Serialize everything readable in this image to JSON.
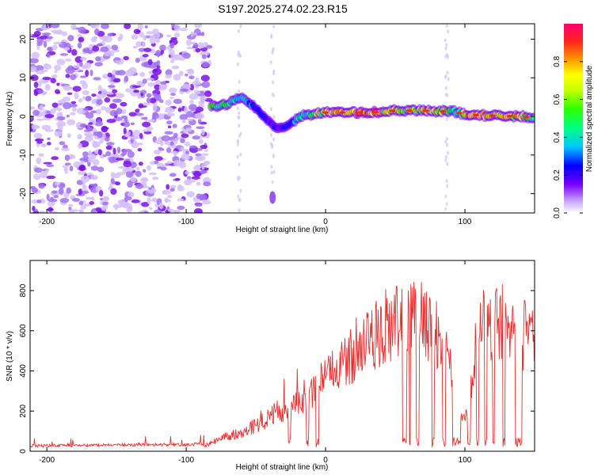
{
  "title": "S197.2025.274.02.23.R15",
  "colors": {
    "snr_line": "#e53030",
    "ridge_low": "#7a00ff",
    "noise": "#8a3cf0"
  },
  "chart_data": [
    {
      "type": "heatmap",
      "name": "spectrogram",
      "xlabel": "Height of straight line (km)",
      "ylabel": "Frequency (Hz)",
      "xlim": [
        -212,
        150
      ],
      "ylim": [
        -25,
        24
      ],
      "xticks": [
        -200,
        -100,
        0,
        100
      ],
      "yticks": [
        -20,
        -10,
        0,
        10,
        20
      ],
      "colorbar": {
        "label": "Normalized spectral amplitude",
        "range": [
          0,
          1
        ],
        "ticks": [
          0.0,
          0.2,
          0.4,
          0.6,
          0.8
        ],
        "tick_labels": [
          "0.0",
          "0.2",
          "0.4",
          "0.6",
          "0.8"
        ]
      },
      "noise_region_x": [
        -212,
        -83
      ],
      "ridge": {
        "x": [
          -82,
          -72,
          -66,
          -60,
          -56,
          -50,
          -44,
          -38,
          -34,
          -28,
          -22,
          -18,
          -12,
          -5,
          0,
          10,
          20,
          30,
          40,
          50,
          60,
          70,
          80,
          90,
          95,
          100,
          110,
          120,
          130,
          140,
          150
        ],
        "freq": [
          2.5,
          3,
          4,
          5,
          4,
          2,
          0,
          -2,
          -3,
          -2.5,
          -1,
          0,
          0.5,
          0.8,
          1,
          1,
          1,
          1,
          1.2,
          1.5,
          1.5,
          1.5,
          1.2,
          1.5,
          1,
          0.5,
          0.3,
          0.2,
          0.1,
          0,
          -0.5
        ],
        "amp": [
          0.6,
          0.6,
          0.55,
          0.55,
          0.5,
          0.4,
          0.3,
          0.25,
          0.3,
          0.35,
          0.45,
          0.5,
          0.6,
          0.7,
          0.85,
          0.9,
          0.95,
          1.0,
          0.9,
          0.7,
          0.8,
          0.85,
          0.9,
          0.6,
          0.55,
          0.95,
          0.95,
          0.9,
          0.95,
          0.85,
          0.6
        ]
      }
    },
    {
      "type": "line",
      "name": "snr",
      "xlabel": "Height of straight line (km)",
      "ylabel": "SNR (10 * v/v)",
      "xlim": [
        -212,
        150
      ],
      "ylim": [
        0,
        950
      ],
      "xticks": [
        -200,
        -100,
        0,
        100
      ],
      "yticks": [
        0,
        200,
        400,
        600,
        800
      ],
      "envelope": {
        "x": [
          -212,
          -120,
          -95,
          -85,
          -75,
          -60,
          -50,
          -40,
          -30,
          -20,
          -10,
          0,
          10,
          20,
          30,
          40,
          50,
          60,
          70,
          80,
          90,
          100,
          110,
          120,
          130,
          140,
          150
        ],
        "snr": [
          20,
          25,
          25,
          40,
          80,
          120,
          160,
          220,
          260,
          320,
          380,
          440,
          520,
          620,
          700,
          760,
          790,
          800,
          810,
          720,
          500,
          200,
          780,
          800,
          790,
          700,
          760
        ]
      },
      "dropouts": [
        [
          -27,
          -25
        ],
        [
          -14,
          -12
        ],
        [
          -7,
          -5
        ],
        [
          55,
          58
        ],
        [
          60,
          61
        ],
        [
          65,
          67
        ],
        [
          76,
          78
        ],
        [
          84,
          86
        ],
        [
          91,
          97
        ],
        [
          102,
          104
        ],
        [
          108,
          110
        ],
        [
          114,
          116
        ],
        [
          120,
          121
        ],
        [
          127,
          129
        ],
        [
          136,
          141
        ]
      ]
    }
  ]
}
